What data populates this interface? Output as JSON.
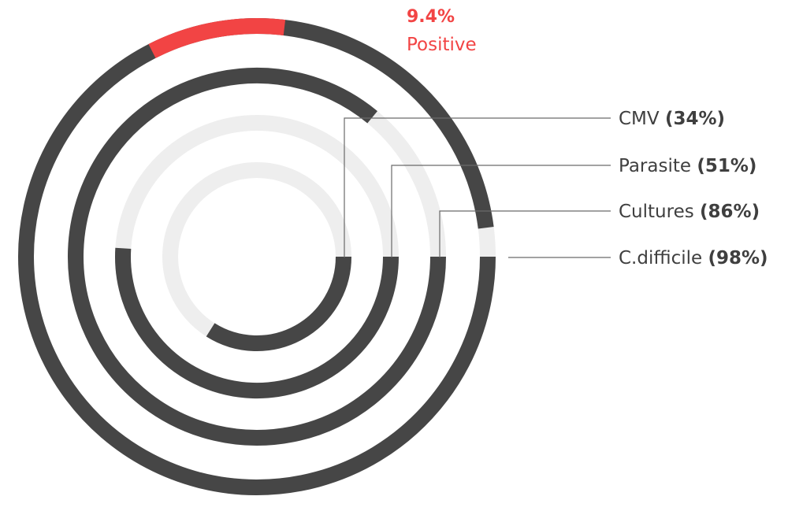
{
  "chart_data": {
    "type": "radial-bar",
    "positive": {
      "value_label": "9.4%",
      "label": "Positive",
      "value": 9.4
    },
    "series": [
      {
        "name": "CMV",
        "value": 34,
        "value_label": "(34%)"
      },
      {
        "name": "Parasite",
        "value": 51,
        "value_label": "(51%)"
      },
      {
        "name": "Cultures",
        "value": 86,
        "value_label": "(86%)"
      },
      {
        "name": "C.difficile",
        "value": 98,
        "value_label": "(98%)"
      }
    ],
    "colors": {
      "bar": "#464646",
      "track": "#eeeeee",
      "highlight": "#f24444",
      "label": "#3f3f3f",
      "leader": "#6a6a6a"
    }
  }
}
